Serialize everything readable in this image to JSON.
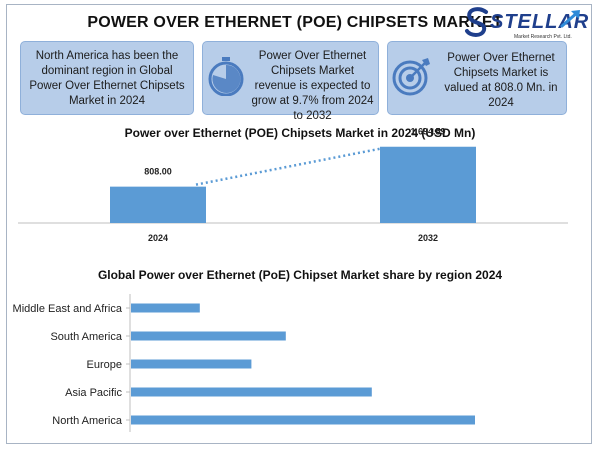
{
  "header": {
    "title": "POWER OVER ETHERNET (POE) CHIPSETS MARKET",
    "logo_name": "STELLAR",
    "logo_tagline": "Market Research Pvt. Ltd."
  },
  "info_boxes": [
    {
      "text": "North America has been the dominant region in Global Power Over Ethernet Chipsets Market in 2024",
      "icon": ""
    },
    {
      "text": "Power Over Ethernet Chipsets Market revenue is expected to grow at 9.7% from 2024 to 2032",
      "icon": "stopwatch-icon"
    },
    {
      "text": "Power Over Ethernet Chipsets Market is valued at 808.0 Mn. in 2024",
      "icon": "target-icon"
    }
  ],
  "colors": {
    "bar": "#5b9bd5",
    "box_fill": "#b7cde9",
    "trend_line": "#5b9bd5",
    "icon": "#4a7bbf",
    "logo": "#1f3f8c"
  },
  "chart_data": [
    {
      "type": "bar",
      "title": "Power over Ethernet (POE) Chipsets Market in 2024 (USD Mn)",
      "categories": [
        "2024",
        "2032"
      ],
      "values": [
        808.0,
        1694.59
      ],
      "data_labels": [
        "808.00",
        "1,694.59"
      ],
      "xlabel": "",
      "ylabel": "",
      "ylim": [
        0,
        1800
      ],
      "trend_line": true,
      "grid": false
    },
    {
      "type": "bar",
      "orientation": "horizontal",
      "title": "Global Power over Ethernet (PoE) Chipset Market share by  region 2024",
      "categories": [
        "Middle East and Africa",
        "South America",
        "Europe",
        "Asia Pacific",
        "North America"
      ],
      "values": [
        4,
        9,
        7,
        14,
        20
      ],
      "xlabel": "",
      "ylabel": "",
      "xlim": [
        0,
        25
      ],
      "grid": false
    }
  ]
}
